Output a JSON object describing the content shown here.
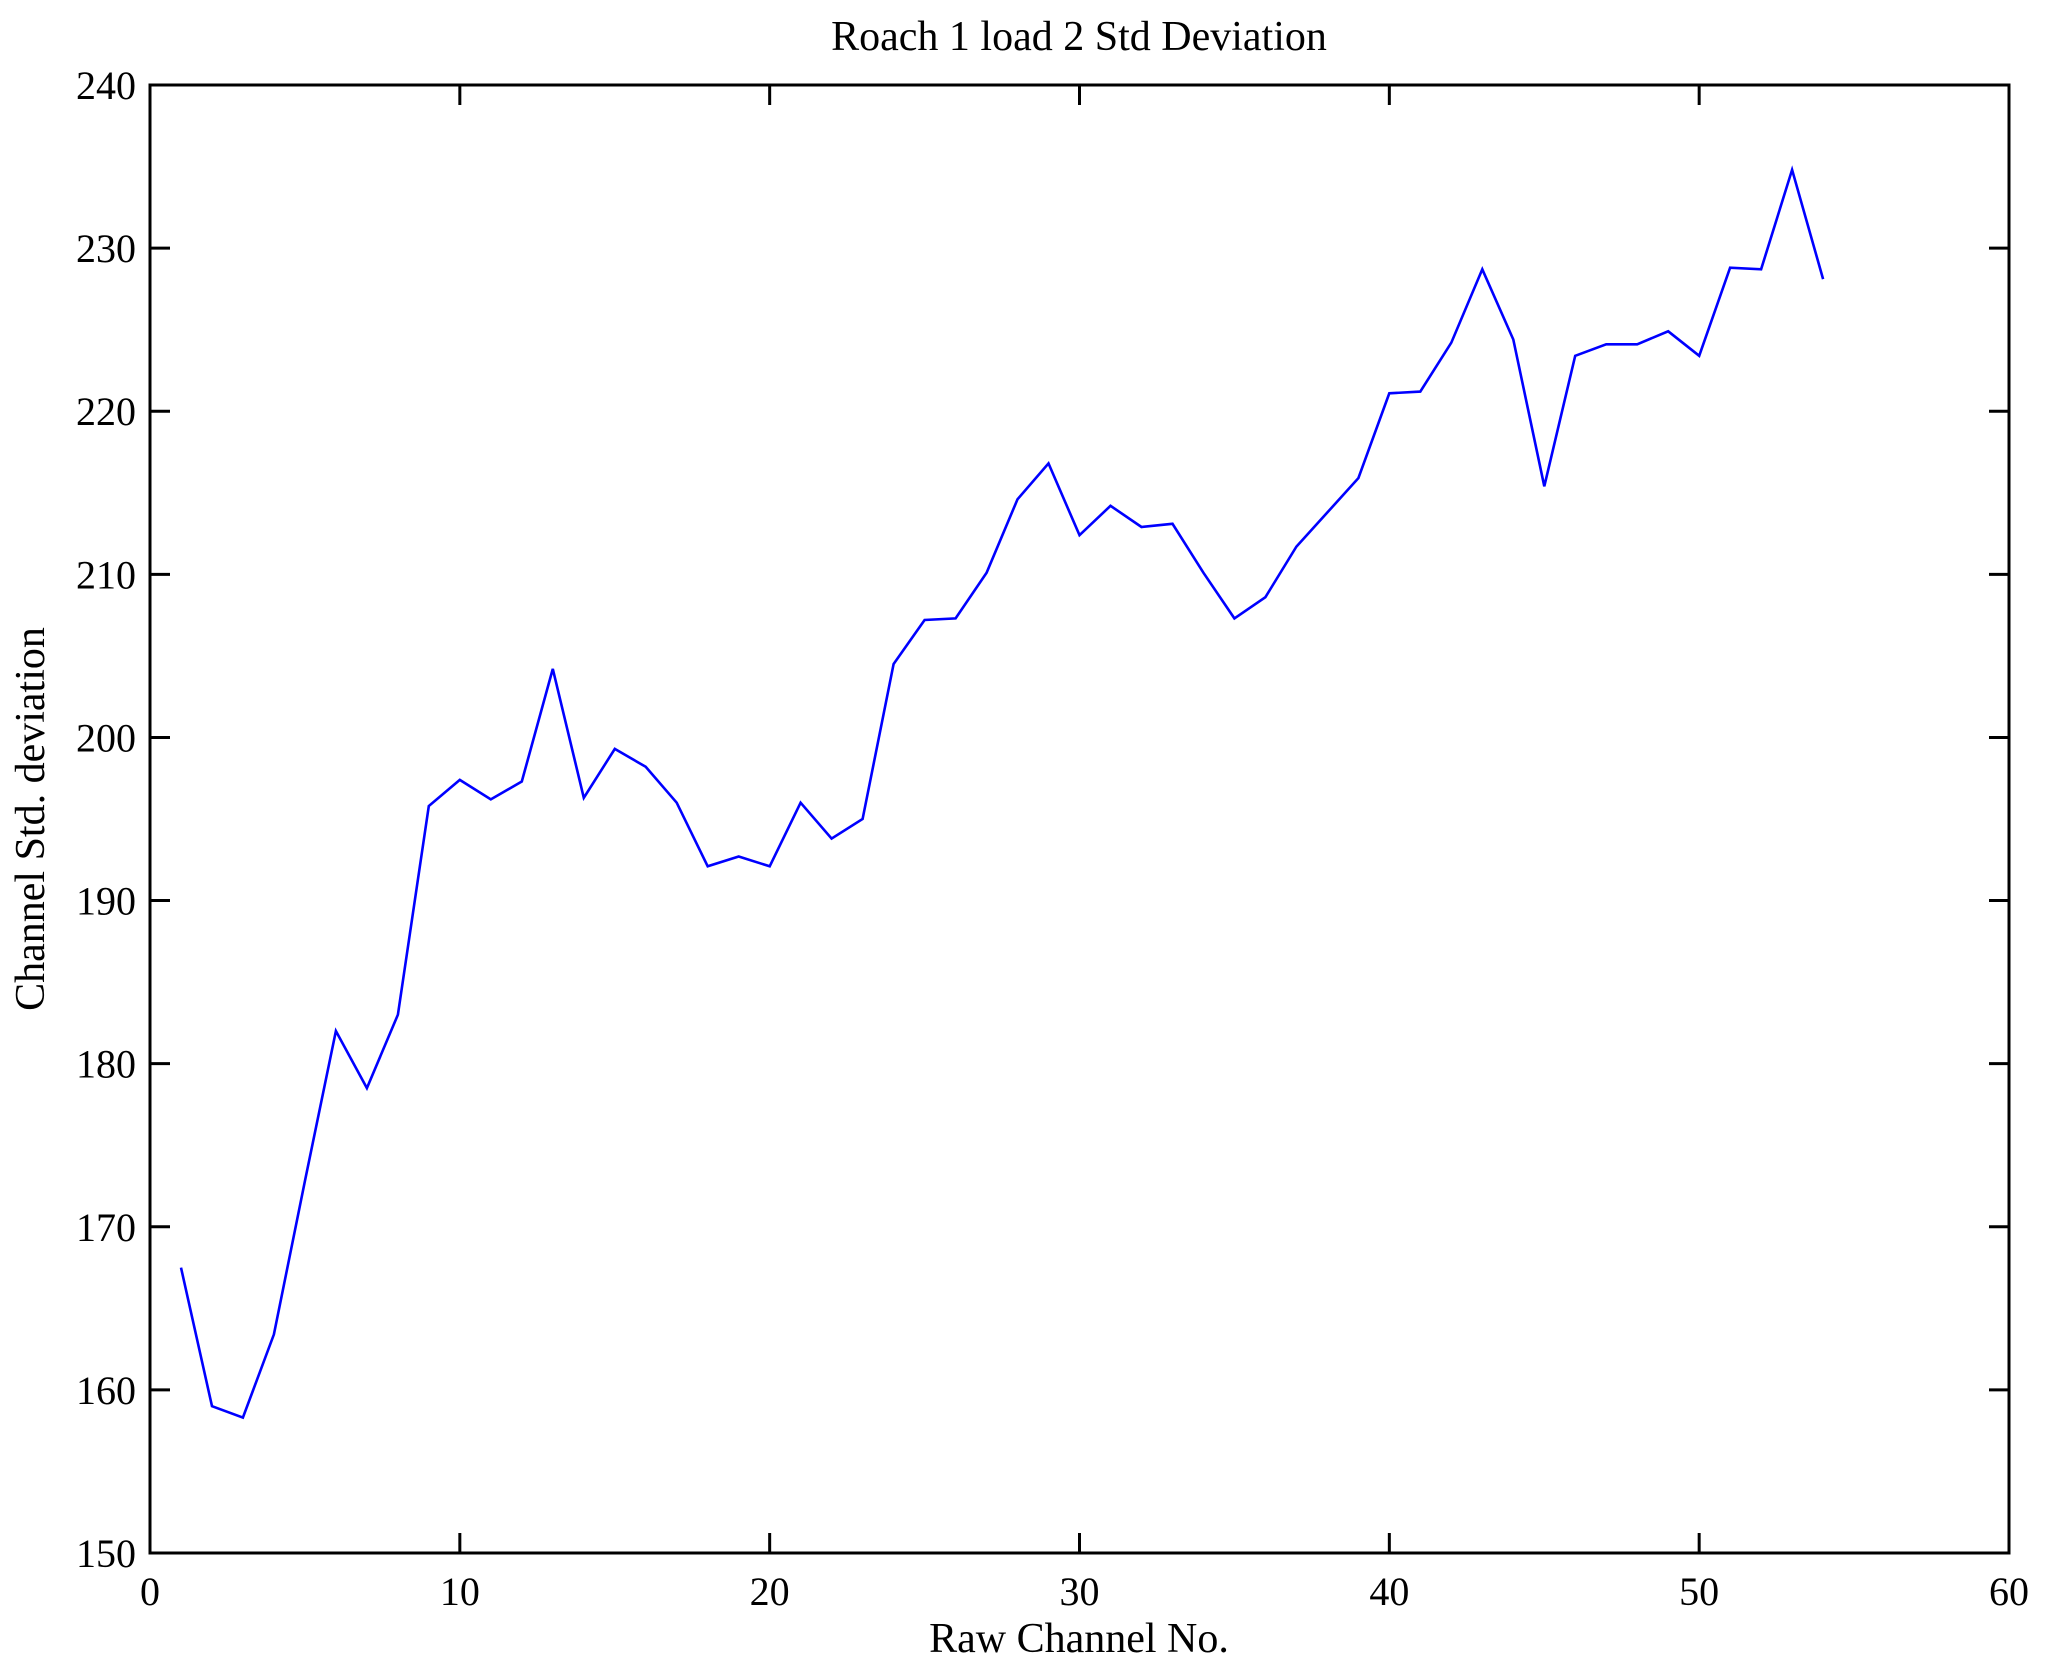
{
  "figure": {
    "background_color": "#ffffff",
    "axis_color": "#000000",
    "text_color": "#000000"
  },
  "chart_data": {
    "type": "line",
    "title": "Roach 1 load 2 Std Deviation",
    "xlabel": "Raw Channel No.",
    "ylabel": "Channel Std. deviation",
    "xlim": [
      0,
      60
    ],
    "ylim": [
      150,
      240
    ],
    "xticks": [
      0,
      10,
      20,
      30,
      40,
      50,
      60
    ],
    "yticks": [
      150,
      160,
      170,
      180,
      190,
      200,
      210,
      220,
      230,
      240
    ],
    "grid": false,
    "legend": null,
    "box": true,
    "line_color": "#0000ff",
    "series": [
      {
        "name": "Channel Std. deviation",
        "x": [
          1,
          2,
          3,
          4,
          5,
          6,
          7,
          8,
          9,
          10,
          11,
          12,
          13,
          14,
          15,
          16,
          17,
          18,
          19,
          20,
          21,
          22,
          23,
          24,
          25,
          26,
          27,
          28,
          29,
          30,
          31,
          32,
          33,
          34,
          35,
          36,
          37,
          38,
          39,
          40,
          41,
          42,
          43,
          44,
          45,
          46,
          47,
          48,
          49,
          50,
          51,
          52,
          53,
          54
        ],
        "y": [
          167.5,
          159.0,
          158.3,
          163.4,
          172.8,
          182.0,
          178.5,
          183.0,
          195.8,
          197.4,
          196.2,
          197.3,
          204.2,
          196.3,
          199.3,
          198.2,
          196.0,
          192.1,
          192.7,
          192.1,
          196.0,
          193.8,
          195.0,
          204.5,
          207.2,
          207.3,
          210.1,
          214.6,
          216.8,
          212.4,
          214.2,
          212.9,
          213.1,
          210.1,
          207.3,
          208.6,
          211.7,
          213.8,
          215.9,
          221.1,
          221.2,
          224.2,
          228.7,
          224.4,
          215.4,
          223.4,
          224.1,
          224.1,
          224.9,
          223.4,
          228.8,
          228.7,
          234.8,
          228.1
        ]
      }
    ]
  }
}
